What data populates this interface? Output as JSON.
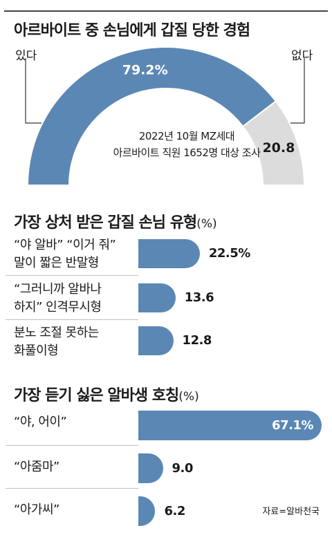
{
  "chart_data": [
    {
      "type": "pie",
      "title": "아르바이트 중 손님에게 갑질 당한 경험",
      "subtitle_lines": [
        "2022년 10월 MZ세대",
        "아르바이트 직원 1652명 대상 조사"
      ],
      "slices": [
        {
          "label": "있다",
          "value": 79.2,
          "value_label": "79.2%",
          "color": "#5b87b5"
        },
        {
          "label": "없다",
          "value": 20.8,
          "value_label": "20.8",
          "color": "#dcdcdc"
        }
      ]
    },
    {
      "type": "bar",
      "title": "가장 상처 받은 갑질 손님 유형",
      "unit": "(%)",
      "categories": [
        [
          "“야 알바” “이거 줘”",
          "말이 짧은 반말형"
        ],
        [
          "“그러니까 알바나",
          "하지” 인격무시형"
        ],
        [
          "분노 조절 못하는",
          "화풀이형"
        ]
      ],
      "values": [
        22.5,
        13.6,
        12.8
      ],
      "value_labels": [
        "22.5%",
        "13.6",
        "12.8"
      ],
      "color": "#5b87b5"
    },
    {
      "type": "bar",
      "title": "가장 듣기 싫은 알바생 호칭",
      "unit": "(%)",
      "categories": [
        "“야, 어이”",
        "“아줌마”",
        "“아가씨”"
      ],
      "values": [
        67.1,
        9.0,
        6.2
      ],
      "value_labels": [
        "67.1%",
        "9.0",
        "6.2"
      ],
      "color": "#5b87b5"
    }
  ],
  "source": "자료=알바천국"
}
